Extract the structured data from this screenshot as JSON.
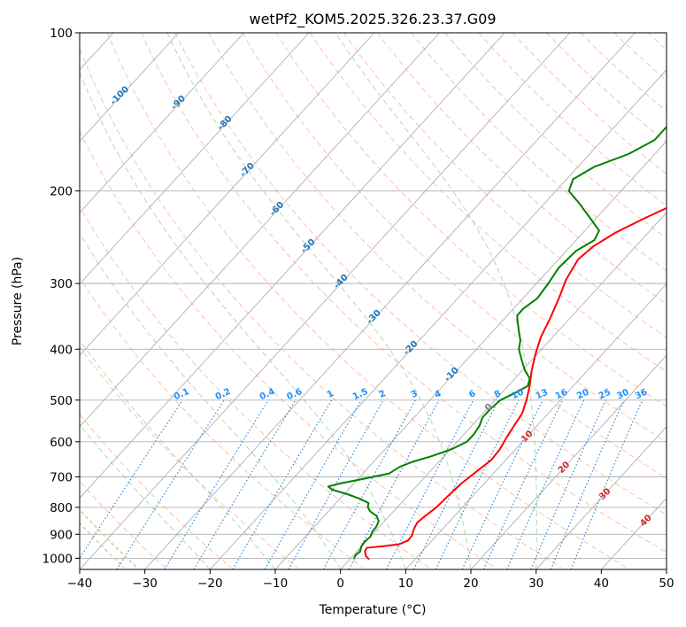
{
  "chart_data": {
    "type": "line",
    "title": "wetPf2_KOM5.2025.326.23.37.G09",
    "xlabel": "Temperature (°C)",
    "ylabel": "Pressure (hPa)",
    "xlim": [
      -40,
      50
    ],
    "ylim": [
      1050,
      100
    ],
    "y_scale": "log",
    "grid": true,
    "x_ticks": [
      -40,
      -30,
      -20,
      -10,
      0,
      10,
      20,
      30,
      40,
      50
    ],
    "y_ticks": [
      100,
      200,
      300,
      400,
      500,
      600,
      700,
      800,
      900,
      1000
    ],
    "isotherm_labels": [
      "-100",
      "-90",
      "-80",
      "-70",
      "-60",
      "-50",
      "-40",
      "-30",
      "-20",
      "-10",
      "0",
      "10",
      "20",
      "30",
      "40"
    ],
    "mixing_ratio_labels": [
      "0.1",
      "0.2",
      "0.4",
      "0.6",
      "1",
      "1.5",
      "2",
      "3",
      "4",
      "6",
      "8",
      "10",
      "13",
      "16",
      "20",
      "25",
      "30",
      "36"
    ],
    "colors": {
      "temperature": "#ff0000",
      "dewpoint": "#008000",
      "grid": "#b0b0b0",
      "dry_adiabat": "#ffb09a",
      "moist_adiabat": "#a8d5a8",
      "mixing_ratio": "#1e7fd8",
      "isotherm_label_cold": "#1f77b4",
      "isotherm_label_warm": "#d62728",
      "isotherm_label_zero": "#808080",
      "mixing_ratio_label": "#1e90ff",
      "dashed_curve": "#e0c8a8"
    },
    "series": [
      {
        "name": "",
        "role": "temperature",
        "points": [
          {
            "p": 1005,
            "t": 3.0
          },
          {
            "p": 990,
            "t": 2.0
          },
          {
            "p": 970,
            "t": 1.2
          },
          {
            "p": 955,
            "t": 1.0
          },
          {
            "p": 948,
            "t": 3.5
          },
          {
            "p": 940,
            "t": 5.5
          },
          {
            "p": 925,
            "t": 6.3
          },
          {
            "p": 905,
            "t": 6.2
          },
          {
            "p": 880,
            "t": 5.6
          },
          {
            "p": 855,
            "t": 5.2
          },
          {
            "p": 830,
            "t": 5.5
          },
          {
            "p": 800,
            "t": 6.0
          },
          {
            "p": 760,
            "t": 6.2
          },
          {
            "p": 720,
            "t": 6.5
          },
          {
            "p": 680,
            "t": 7.2
          },
          {
            "p": 650,
            "t": 7.8
          },
          {
            "p": 620,
            "t": 7.6
          },
          {
            "p": 590,
            "t": 7.0
          },
          {
            "p": 560,
            "t": 6.5
          },
          {
            "p": 530,
            "t": 6.0
          },
          {
            "p": 500,
            "t": 4.8
          },
          {
            "p": 470,
            "t": 3.3
          },
          {
            "p": 440,
            "t": 1.5
          },
          {
            "p": 410,
            "t": -0.2
          },
          {
            "p": 380,
            "t": -1.8
          },
          {
            "p": 350,
            "t": -3.0
          },
          {
            "p": 320,
            "t": -4.5
          },
          {
            "p": 295,
            "t": -6.0
          },
          {
            "p": 270,
            "t": -7.0
          },
          {
            "p": 255,
            "t": -6.5
          },
          {
            "p": 240,
            "t": -5.0
          },
          {
            "p": 225,
            "t": -2.5
          },
          {
            "p": 210,
            "t": 0.5
          },
          {
            "p": 195,
            "t": 5.0
          },
          {
            "p": 180,
            "t": 8.5
          },
          {
            "p": 165,
            "t": 11.5
          },
          {
            "p": 150,
            "t": 15.0
          },
          {
            "p": 140,
            "t": 17.5
          },
          {
            "p": 130,
            "t": 21.0
          },
          {
            "p": 120,
            "t": 24.0
          },
          {
            "p": 112,
            "t": 24.8
          },
          {
            "p": 105,
            "t": 27.5
          },
          {
            "p": 100,
            "t": 30.0
          }
        ]
      },
      {
        "name": "",
        "role": "dewpoint",
        "points": [
          {
            "p": 1000,
            "t": 0.5
          },
          {
            "p": 985,
            "t": 0.3
          },
          {
            "p": 970,
            "t": 0.5
          },
          {
            "p": 950,
            "t": 0.0
          },
          {
            "p": 930,
            "t": -0.2
          },
          {
            "p": 910,
            "t": 0.0
          },
          {
            "p": 890,
            "t": -0.4
          },
          {
            "p": 870,
            "t": -0.5
          },
          {
            "p": 850,
            "t": -0.9
          },
          {
            "p": 830,
            "t": -2.0
          },
          {
            "p": 815,
            "t": -3.5
          },
          {
            "p": 800,
            "t": -4.5
          },
          {
            "p": 785,
            "t": -5.0
          },
          {
            "p": 770,
            "t": -7.0
          },
          {
            "p": 755,
            "t": -9.5
          },
          {
            "p": 740,
            "t": -12.5
          },
          {
            "p": 730,
            "t": -13.5
          },
          {
            "p": 720,
            "t": -12.0
          },
          {
            "p": 705,
            "t": -9.0
          },
          {
            "p": 690,
            "t": -6.0
          },
          {
            "p": 670,
            "t": -5.3
          },
          {
            "p": 655,
            "t": -4.0
          },
          {
            "p": 640,
            "t": -2.0
          },
          {
            "p": 620,
            "t": 0.2
          },
          {
            "p": 600,
            "t": 1.5
          },
          {
            "p": 580,
            "t": 1.5
          },
          {
            "p": 560,
            "t": 1.2
          },
          {
            "p": 540,
            "t": 0.5
          },
          {
            "p": 520,
            "t": 0.5
          },
          {
            "p": 500,
            "t": 0.8
          },
          {
            "p": 485,
            "t": 2.0
          },
          {
            "p": 470,
            "t": 3.0
          },
          {
            "p": 455,
            "t": 2.3
          },
          {
            "p": 440,
            "t": 0.5
          },
          {
            "p": 420,
            "t": -1.5
          },
          {
            "p": 400,
            "t": -3.5
          },
          {
            "p": 385,
            "t": -4.5
          },
          {
            "p": 370,
            "t": -6.0
          },
          {
            "p": 355,
            "t": -7.5
          },
          {
            "p": 345,
            "t": -8.5
          },
          {
            "p": 335,
            "t": -8.5
          },
          {
            "p": 320,
            "t": -7.8
          },
          {
            "p": 300,
            "t": -8.2
          },
          {
            "p": 280,
            "t": -8.8
          },
          {
            "p": 260,
            "t": -8.5
          },
          {
            "p": 248,
            "t": -7.2
          },
          {
            "p": 238,
            "t": -7.8
          },
          {
            "p": 225,
            "t": -11.0
          },
          {
            "p": 210,
            "t": -15.0
          },
          {
            "p": 200,
            "t": -18.0
          },
          {
            "p": 190,
            "t": -19.0
          },
          {
            "p": 180,
            "t": -17.5
          },
          {
            "p": 170,
            "t": -14.0
          },
          {
            "p": 160,
            "t": -12.0
          },
          {
            "p": 150,
            "t": -12.0
          },
          {
            "p": 140,
            "t": -11.0
          },
          {
            "p": 130,
            "t": -10.0
          },
          {
            "p": 120,
            "t": -8.0
          },
          {
            "p": 110,
            "t": -5.0
          },
          {
            "p": 100,
            "t": 0.5
          }
        ]
      }
    ]
  }
}
